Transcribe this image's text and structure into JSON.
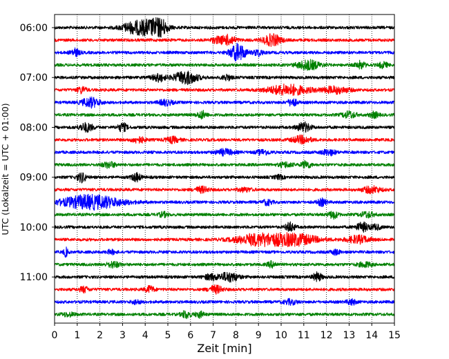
{
  "chart_data": {
    "type": "line",
    "title": "",
    "xlabel": "Zeit  [min]",
    "ylabel": "UTC (Lokalzeit = UTC + 01:00)",
    "xlim": [
      0,
      15
    ],
    "x_ticks": [
      "0",
      "1",
      "2",
      "3",
      "4",
      "5",
      "6",
      "7",
      "8",
      "9",
      "10",
      "11",
      "12",
      "13",
      "14",
      "15"
    ],
    "y_tick_labels": [
      "06:00",
      "07:00",
      "08:00",
      "09:00",
      "10:00",
      "11:00"
    ],
    "grid": "vertical dotted",
    "colors": [
      "#000000",
      "#ff0000",
      "#0000ff",
      "#008000"
    ],
    "trace_start_times": [
      "06:00",
      "06:15",
      "06:30",
      "06:45",
      "07:00",
      "07:15",
      "07:30",
      "07:45",
      "08:00",
      "08:15",
      "08:30",
      "08:45",
      "09:00",
      "09:15",
      "09:30",
      "09:45",
      "10:00",
      "10:15",
      "10:30",
      "10:45",
      "11:00",
      "11:15",
      "11:30",
      "11:45"
    ],
    "bursts": [
      [
        [
          4.2,
          1.6,
          0.6
        ],
        [
          3.4,
          0.9,
          0.5
        ],
        [
          4.7,
          1.2,
          0.3
        ]
      ],
      [
        [
          7.7,
          1.0,
          0.3
        ],
        [
          9.6,
          1.2,
          0.4
        ],
        [
          7.2,
          0.6,
          0.3
        ]
      ],
      [
        [
          8.1,
          1.8,
          0.35
        ],
        [
          0.9,
          0.8,
          0.2
        ],
        [
          9.0,
          0.7,
          0.2
        ]
      ],
      [
        [
          11.2,
          1.0,
          0.5
        ],
        [
          13.5,
          0.8,
          0.2
        ],
        [
          14.5,
          0.6,
          0.2
        ]
      ],
      [
        [
          5.8,
          1.4,
          0.5
        ],
        [
          4.6,
          0.8,
          0.3
        ],
        [
          7.6,
          0.6,
          0.2
        ]
      ],
      [
        [
          10.3,
          1.1,
          0.9
        ],
        [
          1.2,
          0.7,
          0.2
        ],
        [
          12.4,
          0.7,
          0.6
        ]
      ],
      [
        [
          1.6,
          1.0,
          0.4
        ],
        [
          4.9,
          0.6,
          0.3
        ],
        [
          10.5,
          0.8,
          0.2
        ]
      ],
      [
        [
          6.5,
          0.8,
          0.2
        ],
        [
          13.0,
          0.7,
          0.3
        ],
        [
          14.1,
          0.6,
          0.2
        ]
      ],
      [
        [
          1.4,
          0.9,
          0.3
        ],
        [
          3.0,
          0.9,
          0.2
        ],
        [
          11.0,
          1.0,
          0.3
        ]
      ],
      [
        [
          3.7,
          0.6,
          0.3
        ],
        [
          5.2,
          0.6,
          0.3
        ],
        [
          10.9,
          0.8,
          0.4
        ]
      ],
      [
        [
          7.5,
          0.6,
          0.4
        ],
        [
          9.2,
          0.5,
          0.3
        ],
        [
          12.1,
          0.6,
          0.3
        ]
      ],
      [
        [
          2.4,
          0.6,
          0.3
        ],
        [
          10.2,
          0.5,
          0.3
        ],
        [
          11.1,
          0.8,
          0.2
        ]
      ],
      [
        [
          1.2,
          1.0,
          0.2
        ],
        [
          3.6,
          0.9,
          0.2
        ],
        [
          9.9,
          0.4,
          0.2
        ]
      ],
      [
        [
          6.5,
          0.6,
          0.3
        ],
        [
          14.0,
          0.7,
          0.4
        ],
        [
          8.4,
          0.4,
          0.3
        ]
      ],
      [
        [
          1.6,
          1.5,
          1.3
        ],
        [
          11.8,
          0.7,
          0.2
        ],
        [
          9.4,
          0.6,
          0.2
        ]
      ],
      [
        [
          12.3,
          0.8,
          0.2
        ],
        [
          13.8,
          0.6,
          0.3
        ],
        [
          4.8,
          0.5,
          0.2
        ]
      ],
      [
        [
          10.4,
          1.0,
          0.2
        ],
        [
          13.6,
          0.9,
          0.3
        ],
        [
          14.2,
          0.5,
          0.2
        ]
      ],
      [
        [
          9.0,
          1.2,
          1.0
        ],
        [
          10.6,
          1.2,
          1.0
        ],
        [
          13.4,
          0.8,
          0.5
        ]
      ],
      [
        [
          0.5,
          0.9,
          0.1
        ],
        [
          12.4,
          0.5,
          0.2
        ],
        [
          2.5,
          0.4,
          0.2
        ]
      ],
      [
        [
          2.6,
          0.6,
          0.3
        ],
        [
          9.6,
          0.6,
          0.2
        ],
        [
          13.7,
          0.5,
          0.3
        ]
      ],
      [
        [
          7.7,
          1.0,
          0.4
        ],
        [
          11.6,
          0.9,
          0.2
        ],
        [
          6.9,
          0.6,
          0.3
        ]
      ],
      [
        [
          7.1,
          0.8,
          0.3
        ],
        [
          4.2,
          0.7,
          0.2
        ],
        [
          1.3,
          0.6,
          0.2
        ]
      ],
      [
        [
          13.1,
          0.6,
          0.2
        ],
        [
          10.4,
          0.5,
          0.3
        ],
        [
          3.6,
          0.4,
          0.2
        ]
      ],
      [
        [
          5.8,
          0.8,
          0.2
        ],
        [
          6.4,
          0.6,
          0.2
        ],
        [
          0.6,
          0.4,
          0.3
        ]
      ]
    ]
  }
}
